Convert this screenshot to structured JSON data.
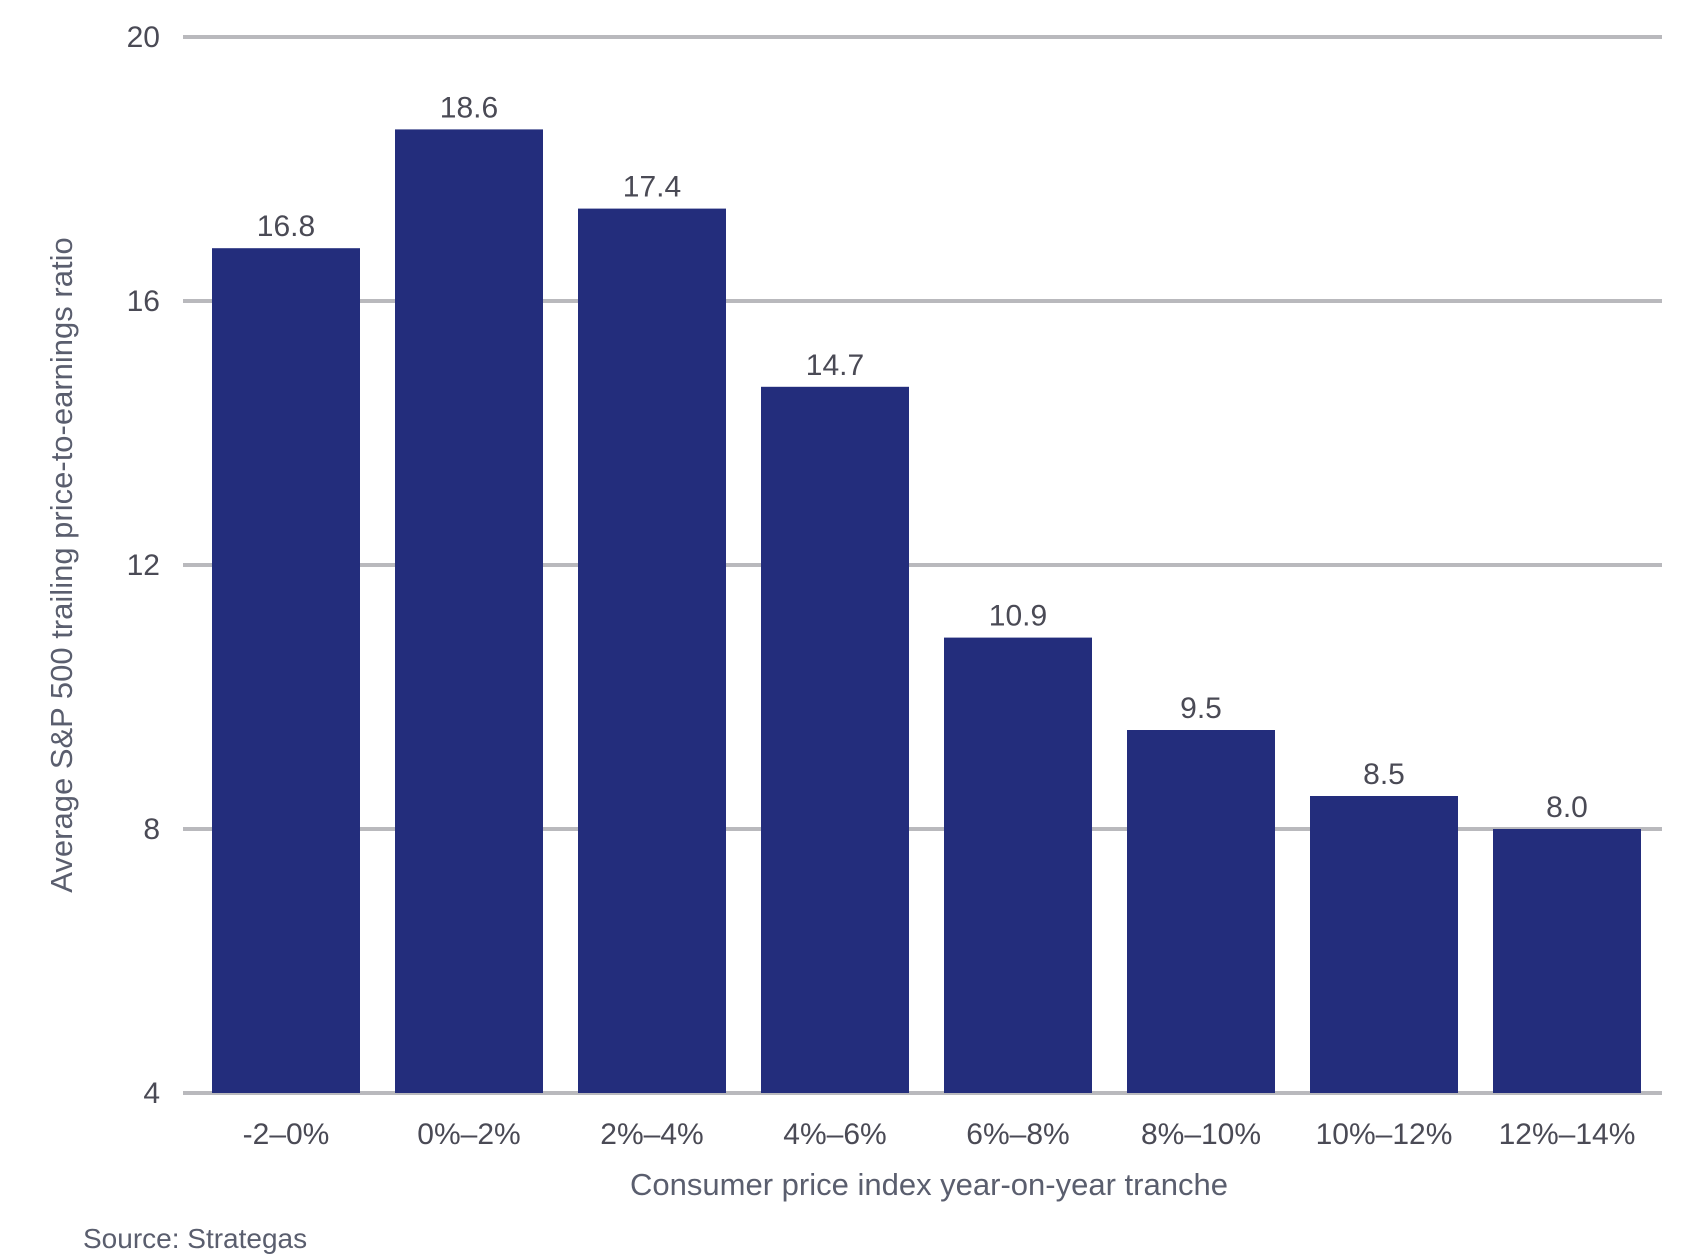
{
  "chart_data": {
    "type": "bar",
    "categories": [
      "-2–0%",
      "0%–2%",
      "2%–4%",
      "4%–6%",
      "6%–8%",
      "8%–10%",
      "10%–12%",
      "12%–14%"
    ],
    "values": [
      16.8,
      18.6,
      17.4,
      14.7,
      10.9,
      9.5,
      8.5,
      8.0
    ],
    "value_labels": [
      "16.8",
      "18.6",
      "17.4",
      "14.7",
      "10.9",
      "9.5",
      "8.5",
      "8.0"
    ],
    "xlabel": "Consumer price index year-on-year tranche",
    "ylabel": "Average S&P 500 trailing price-to-earnings ratio",
    "ylim": [
      4,
      20
    ],
    "yticks": [
      4,
      8,
      12,
      16,
      20
    ],
    "grid": true,
    "colors": {
      "bar": "#232d7c",
      "grid": "#b9b9bd",
      "text": "#4a4a55"
    }
  },
  "source": "Source: Strategas"
}
